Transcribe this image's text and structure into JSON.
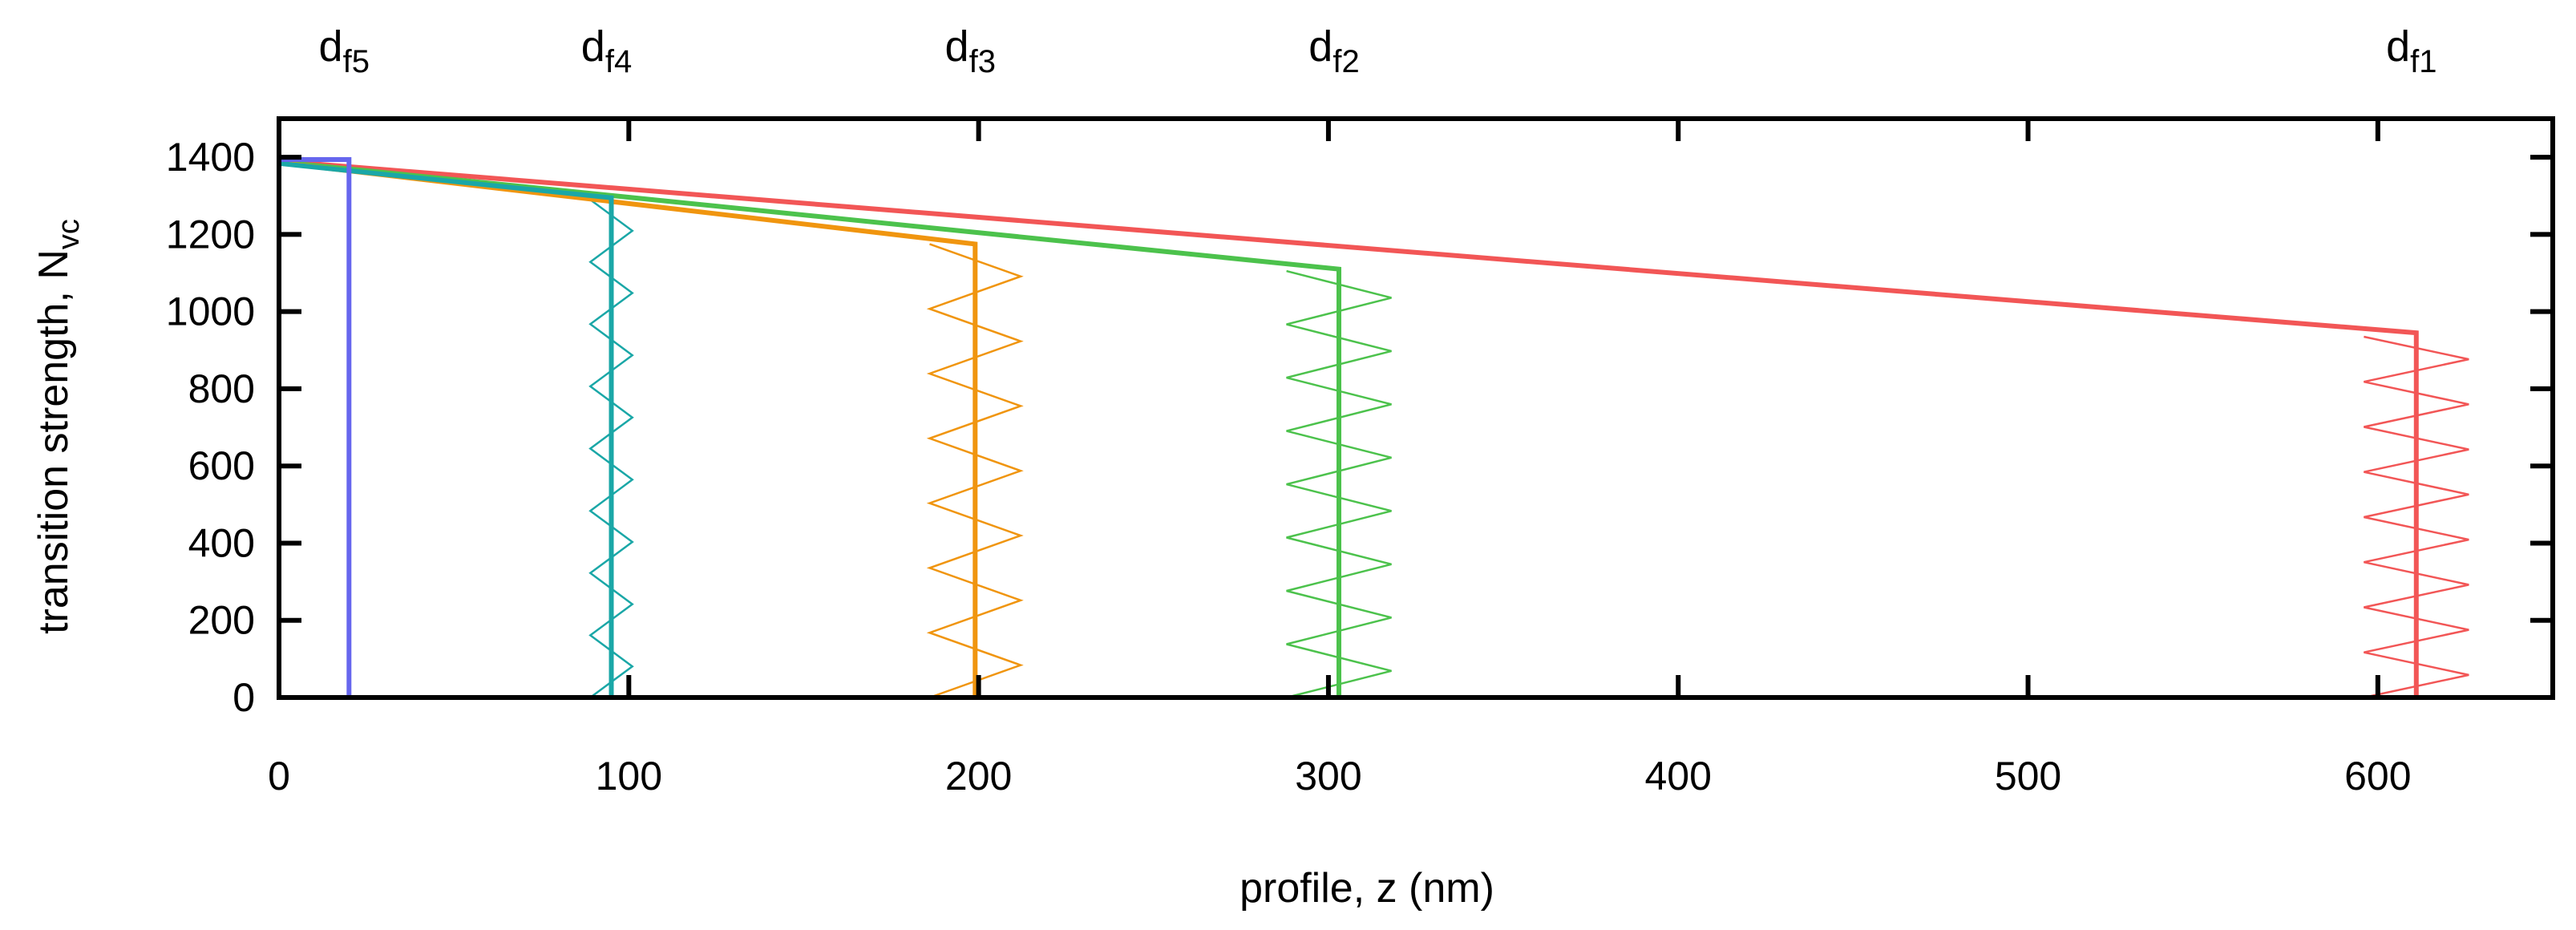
{
  "chart_data": {
    "type": "line",
    "title": "",
    "xlabel": "profile, z (nm)",
    "ylabel": {
      "main": "transition strength, N",
      "sub": "vc"
    },
    "xlim": [
      0,
      650
    ],
    "ylim": [
      0,
      1500
    ],
    "xticks": [
      0,
      100,
      200,
      300,
      400,
      500,
      600
    ],
    "yticks": [
      0,
      200,
      400,
      600,
      800,
      1000,
      1200,
      1400
    ],
    "grid": false,
    "legend": "none",
    "top_labels": [
      {
        "main": "d",
        "sub": "f5",
        "x": 20
      },
      {
        "main": "d",
        "sub": "f4",
        "x": 95
      },
      {
        "main": "d",
        "sub": "f3",
        "x": 199
      },
      {
        "main": "d",
        "sub": "f2",
        "x": 303
      },
      {
        "main": "d",
        "sub": "f1",
        "x": 611
      }
    ],
    "series": [
      {
        "name": "d_f1",
        "color": "#f25656",
        "x": [
          0,
          611,
          611
        ],
        "y": [
          1390,
          945,
          0
        ],
        "zigzag": {
          "x": 611,
          "amplitude": 15,
          "y_start": 935,
          "y_end": 0,
          "teeth": 8
        }
      },
      {
        "name": "d_f2",
        "color": "#4cc24c",
        "x": [
          0,
          303,
          303
        ],
        "y": [
          1388,
          1110,
          0
        ],
        "zigzag": {
          "x": 303,
          "amplitude": 15,
          "y_start": 1105,
          "y_end": 0,
          "teeth": 8
        }
      },
      {
        "name": "d_f3",
        "color": "#f0950f",
        "x": [
          0,
          199,
          199
        ],
        "y": [
          1386,
          1175,
          0
        ],
        "zigzag": {
          "x": 199,
          "amplitude": 13,
          "y_start": 1175,
          "y_end": 0,
          "teeth": 7
        }
      },
      {
        "name": "d_f4",
        "color": "#1aa7a7",
        "x": [
          0,
          95,
          95
        ],
        "y": [
          1384,
          1295,
          0
        ],
        "zigzag": {
          "x": 95,
          "amplitude": 6,
          "y_start": 1290,
          "y_end": 0,
          "teeth": 8
        }
      },
      {
        "name": "d_f5",
        "color": "#6666ee",
        "x": [
          0,
          20,
          20
        ],
        "y": [
          1394,
          1394,
          0
        ],
        "zigzag": null
      }
    ]
  }
}
